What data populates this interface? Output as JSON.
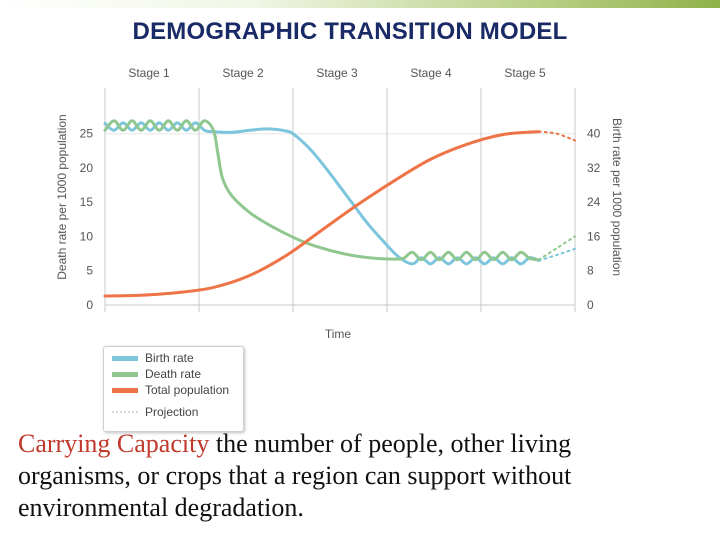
{
  "slide": {
    "title": "DEMOGRAPHIC TRANSITION MODEL",
    "caption_term": "Carrying Capacity",
    "caption_text": " the number of people, other living organisms, or crops that a region can support without environmental degradation."
  },
  "colors": {
    "birth": "#7cc5dc",
    "death": "#8fc78f",
    "population": "#ee7447",
    "projection": "#d8d8d8",
    "axis": "#c8c8c8",
    "text": "#555555"
  },
  "chart_data": {
    "type": "line",
    "title": "",
    "xlabel": "Time",
    "ylabel_left": "Death rate per 1000 population",
    "ylabel_right": "Birth rate per 1000 population",
    "stages": [
      "Stage 1",
      "Stage 2",
      "Stage 3",
      "Stage 4",
      "Stage 5"
    ],
    "x_range": [
      0,
      5.2
    ],
    "ylim_left": [
      0,
      27
    ],
    "ylim_right": [
      0,
      43.2
    ],
    "yticks_left": [
      0,
      5,
      10,
      15,
      20,
      25
    ],
    "yticks_right": [
      0,
      8,
      16,
      24,
      32,
      40
    ],
    "legend": [
      "Birth rate",
      "Death rate",
      "Total population",
      "Projection"
    ],
    "series": [
      {
        "name": "Birth rate",
        "axis": "left",
        "x": [
          0,
          0.1,
          0.2,
          0.3,
          0.4,
          0.5,
          0.6,
          0.7,
          0.8,
          0.9,
          1.0,
          1.1,
          1.2,
          1.4,
          1.6,
          1.8,
          2.0,
          2.1,
          2.3,
          2.5,
          2.7,
          2.9,
          3.1,
          3.25,
          3.4,
          3.5,
          3.6,
          3.7,
          3.8,
          3.9,
          4.0,
          4.1,
          4.2,
          4.3,
          4.4,
          4.5,
          4.6,
          4.7,
          4.8
        ],
        "values": [
          26.5,
          25.5,
          26.6,
          25.5,
          26.6,
          25.5,
          26.6,
          25.5,
          26.6,
          25.5,
          26.6,
          25.5,
          25.3,
          25.2,
          25.5,
          25.7,
          25.4,
          24.8,
          22.3,
          19.0,
          15.5,
          12.0,
          9.0,
          7.0,
          6.0,
          6.9,
          6.0,
          6.9,
          6.0,
          6.9,
          6.0,
          6.9,
          6.0,
          6.9,
          6.0,
          6.9,
          6.0,
          6.9,
          6.5
        ]
      },
      {
        "name": "Death rate",
        "axis": "left",
        "x": [
          0,
          0.1,
          0.2,
          0.3,
          0.4,
          0.5,
          0.6,
          0.7,
          0.8,
          0.9,
          1.0,
          1.1,
          1.2,
          1.25,
          1.3,
          1.4,
          1.6,
          1.8,
          2.0,
          2.2,
          2.4,
          2.6,
          2.8,
          3.0,
          3.2,
          3.3,
          3.4,
          3.5,
          3.6,
          3.7,
          3.8,
          3.9,
          4.0,
          4.1,
          4.2,
          4.3,
          4.4,
          4.5,
          4.6,
          4.7,
          4.8
        ],
        "values": [
          25.5,
          26.9,
          25.5,
          26.9,
          25.5,
          26.9,
          25.5,
          26.9,
          25.5,
          26.9,
          25.5,
          26.9,
          25.5,
          22.0,
          18.5,
          16.0,
          13.5,
          11.8,
          10.4,
          9.2,
          8.3,
          7.6,
          7.1,
          6.8,
          6.7,
          6.8,
          7.7,
          6.6,
          7.7,
          6.6,
          7.7,
          6.6,
          7.7,
          6.6,
          7.7,
          6.6,
          7.7,
          6.6,
          7.7,
          6.8,
          6.6
        ]
      },
      {
        "name": "Total population",
        "axis": "right",
        "x": [
          0,
          0.4,
          0.8,
          1.2,
          1.6,
          2.0,
          2.4,
          2.8,
          3.2,
          3.6,
          4.0,
          4.4,
          4.8
        ],
        "values": [
          2.1,
          2.3,
          2.9,
          4.1,
          6.9,
          11.5,
          17.5,
          23.5,
          29.0,
          34.0,
          37.5,
          39.8,
          40.5
        ]
      },
      {
        "name": "Projection (birth rate)",
        "axis": "left",
        "x": [
          4.8,
          5.0,
          5.2
        ],
        "values": [
          6.5,
          7.3,
          8.2
        ]
      },
      {
        "name": "Projection (death rate)",
        "axis": "left",
        "x": [
          4.8,
          5.0,
          5.2
        ],
        "values": [
          6.6,
          8.3,
          10.0
        ]
      },
      {
        "name": "Projection (total population)",
        "axis": "right",
        "x": [
          4.8,
          5.0,
          5.2
        ],
        "values": [
          40.5,
          40.0,
          38.4
        ]
      }
    ]
  }
}
